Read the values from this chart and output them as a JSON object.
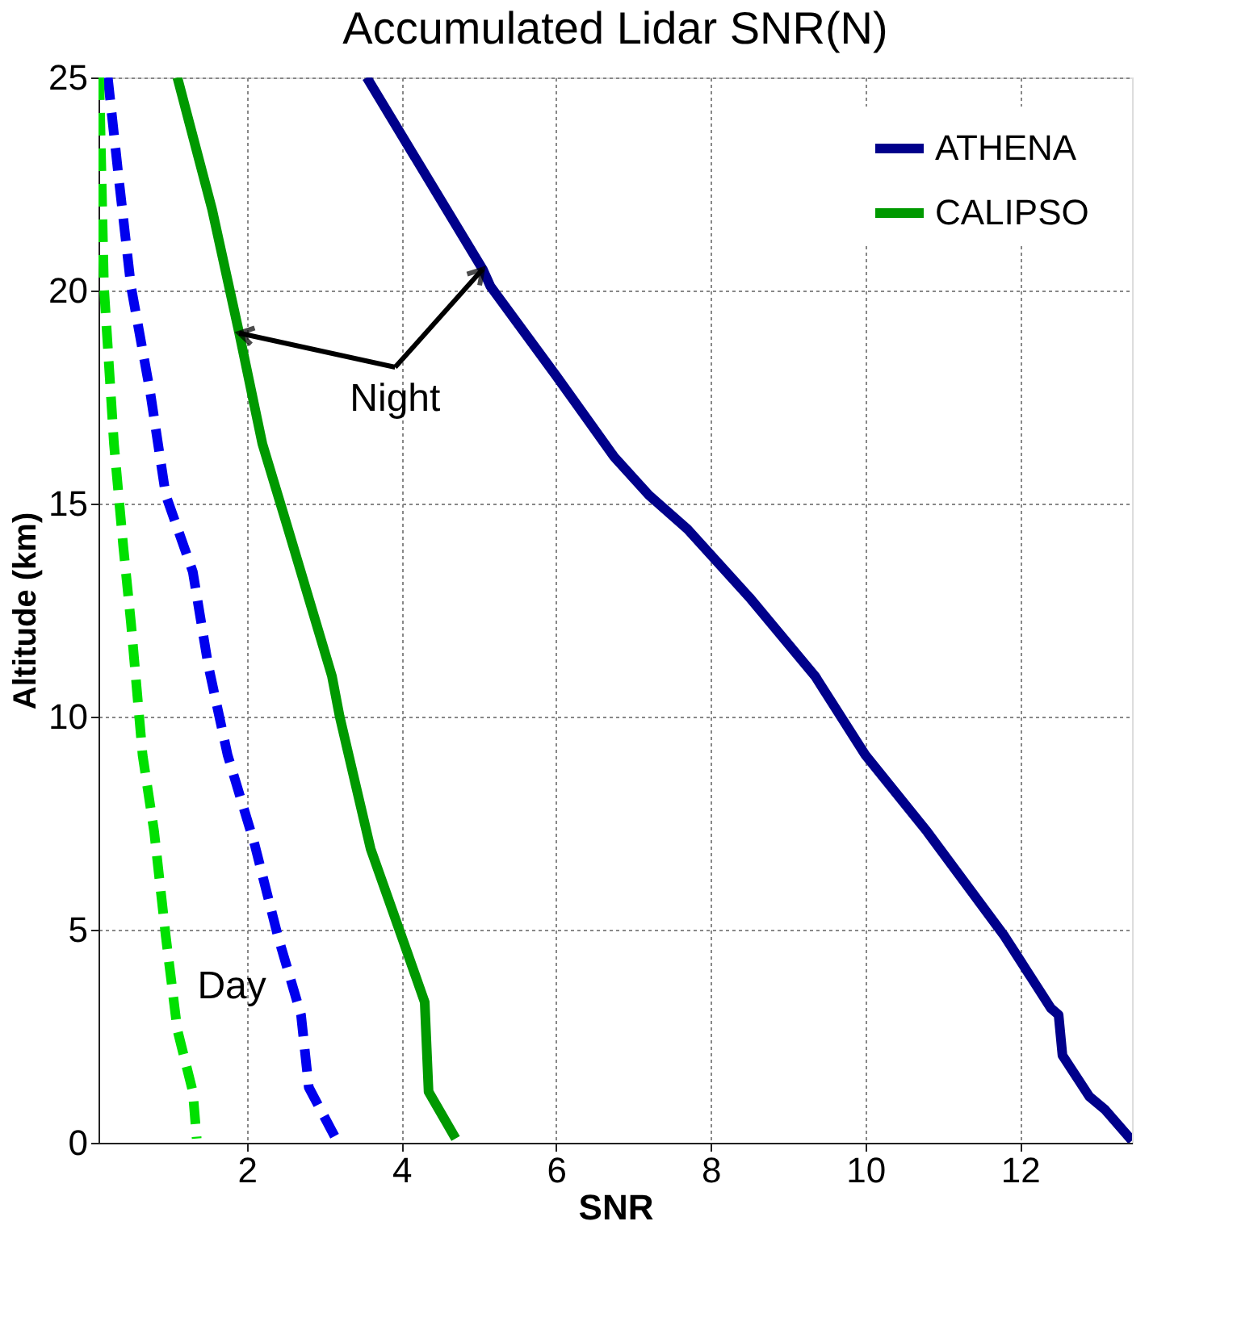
{
  "chart_data": {
    "type": "line",
    "title": "Accumulated Lidar SNR(N)",
    "xlabel": "SNR",
    "ylabel": "Altitude (km)",
    "xlim": [
      0.08,
      13.45
    ],
    "ylim": [
      0,
      25
    ],
    "xticks": [
      2,
      4,
      6,
      8,
      10,
      12
    ],
    "yticks": [
      0,
      5,
      10,
      15,
      20,
      25
    ],
    "grid": true,
    "legend": "top right",
    "marker": "none",
    "annotations": [
      {
        "text": "Night",
        "x": 1.9,
        "y": 19.0
      },
      "Day"
    ],
    "series": [
      {
        "name": "ATHENA",
        "color": "#00008b",
        "line_style": "solid",
        "x": [
          3.55,
          5.05,
          5.15,
          6.0,
          6.75,
          7.2,
          7.7,
          8.5,
          9.35,
          10.0,
          10.8,
          11.8,
          12.4,
          12.5,
          12.55,
          12.9,
          13.1,
          13.45
        ],
        "values": [
          25,
          20.5,
          20.1,
          18.0,
          16.1,
          15.2,
          14.4,
          12.8,
          10.95,
          9.1,
          7.3,
          4.85,
          3.16,
          3.0,
          2.05,
          1.08,
          0.78,
          0.05
        ]
      },
      {
        "name": "CALIPSO",
        "color": "#009900",
        "line_style": "solid",
        "x": [
          1.1,
          1.55,
          1.9,
          2.2,
          2.5,
          3.1,
          3.2,
          3.6,
          4.0,
          4.3,
          4.35,
          4.7
        ],
        "values": [
          25,
          21.9,
          19.0,
          16.4,
          14.6,
          10.95,
          10,
          6.9,
          4.85,
          3.3,
          1.2,
          0.1
        ]
      },
      {
        "color": "#0000ee",
        "line_style": "dashed",
        "x": [
          0.2,
          0.35,
          0.5,
          0.75,
          0.95,
          1.3,
          1.5,
          1.75,
          2.1,
          2.4,
          2.7,
          2.8,
          3.15
        ],
        "values": [
          25,
          22.5,
          20.1,
          17.6,
          15.2,
          13.4,
          11.2,
          9.1,
          7.0,
          4.85,
          3.0,
          1.3,
          0.1
        ]
      },
      {
        "color": "#00e000",
        "line_style": "dashed",
        "x": [
          0.09,
          0.15,
          0.28,
          0.4,
          0.5,
          0.65,
          0.8,
          0.95,
          1.1,
          1.3,
          1.35
        ],
        "values": [
          25,
          20.1,
          16.4,
          14.0,
          12.2,
          9.1,
          7.3,
          4.85,
          2.65,
          1.2,
          0.1
        ]
      }
    ]
  }
}
